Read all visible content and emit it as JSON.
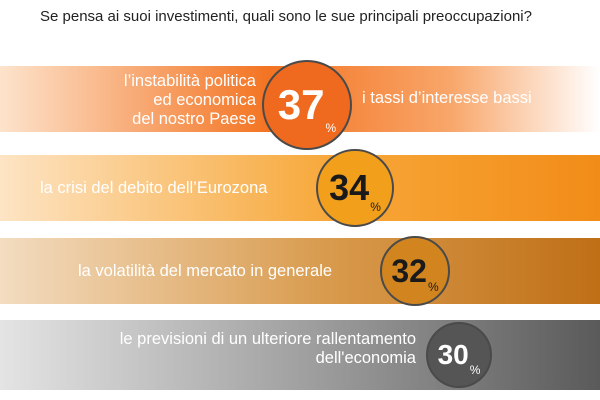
{
  "question": "Se pensa ai suoi investimenti, quali sono le sue principali preoccupazioni?",
  "chart_data": {
    "type": "bar",
    "title": "Se pensa ai suoi investimenti, quali sono le sue principali preoccupazioni?",
    "categories": [
      "l’instabilità politica ed economica del nostro Paese",
      "i tassi d’interesse bassi",
      "la crisi del debito dell’Eurozona",
      "la volatilità del mercato in generale",
      "le previsioni di un ulteriore rallentamento dell'economia"
    ],
    "values": [
      37,
      37,
      34,
      32,
      30
    ],
    "unit": "%"
  },
  "rows": [
    {
      "label_lines": [
        "l’instabilità politica",
        "ed economica",
        "del nostro Paese"
      ],
      "label_right": "i tassi d’interesse bassi",
      "value": "37",
      "unit": "%",
      "band_gradient": [
        "#f37321",
        "#f59a52",
        "#fbe3cf"
      ],
      "badge_color": "#ef6a1f",
      "number_color": "#ffffff"
    },
    {
      "label_lines": [
        "la crisi del debito dell’Eurozona"
      ],
      "value": "34",
      "unit": "%",
      "band_gradient": [
        "#fde4c4",
        "#f7a83a",
        "#f28c18"
      ],
      "badge_color": "#f2a01c",
      "number_color": "#1a1a1a"
    },
    {
      "label_lines": [
        "la volatilità del mercato in generale"
      ],
      "value": "32",
      "unit": "%",
      "band_gradient": [
        "#f3dcc0",
        "#d89a4c",
        "#bf6f16"
      ],
      "badge_color": "#d2841f",
      "number_color": "#1a1a1a"
    },
    {
      "label_lines": [
        "le previsioni di un ulteriore rallentamento",
        "dell'economia"
      ],
      "value": "30",
      "unit": "%",
      "band_gradient": [
        "#e4e4e4",
        "#9a9a9a",
        "#5a5a5a"
      ],
      "badge_color": "#555555",
      "number_color": "#ffffff"
    }
  ]
}
